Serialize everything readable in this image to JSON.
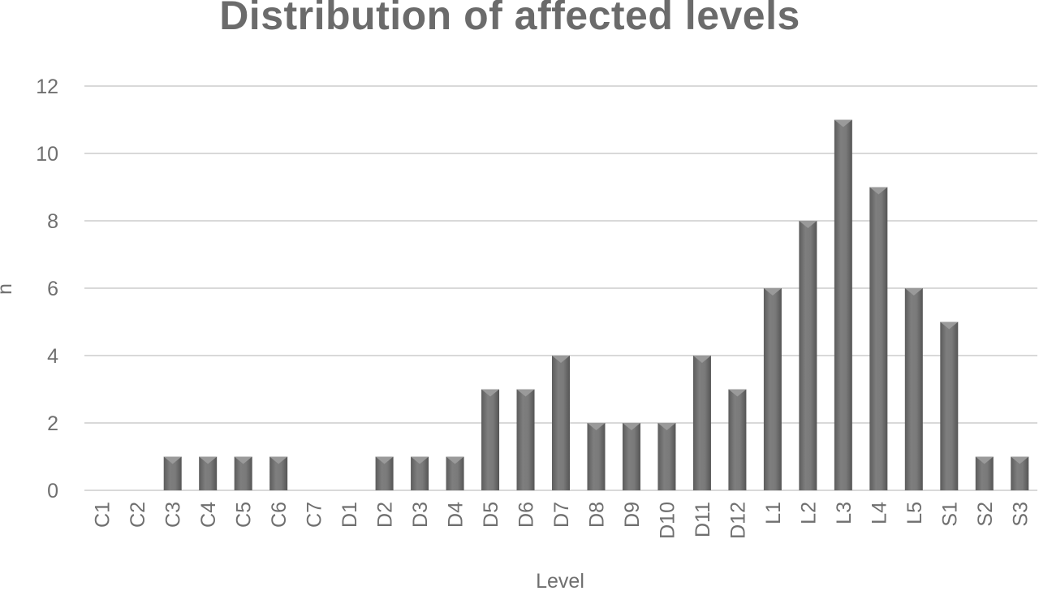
{
  "chart_data": {
    "type": "bar",
    "title": "Distribution of affected levels",
    "xlabel": "Level",
    "ylabel": "n",
    "categories": [
      "C1",
      "C2",
      "C3",
      "C4",
      "C5",
      "C6",
      "C7",
      "D1",
      "D2",
      "D3",
      "D4",
      "D5",
      "D6",
      "D7",
      "D8",
      "D9",
      "D10",
      "D11",
      "D12",
      "L1",
      "L2",
      "L3",
      "L4",
      "L5",
      "S1",
      "S2",
      "S3"
    ],
    "values": [
      0,
      0,
      1,
      1,
      1,
      1,
      0,
      0,
      1,
      1,
      1,
      3,
      3,
      4,
      2,
      2,
      2,
      4,
      3,
      6,
      8,
      11,
      9,
      6,
      5,
      1,
      1
    ],
    "ylim": [
      0,
      12
    ],
    "yticks": [
      0,
      2,
      4,
      6,
      8,
      10,
      12
    ],
    "grid": true,
    "legend": "none",
    "colors": {
      "bar": "#757575",
      "bar_highlight": "#9a9a9a",
      "bar_shadow": "#555555",
      "grid": "#d9d9d9",
      "text": "#6f6f6f"
    }
  }
}
